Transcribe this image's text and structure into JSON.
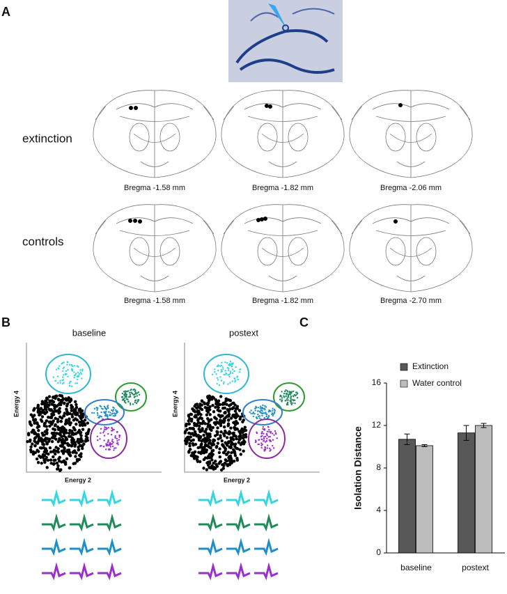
{
  "panels": {
    "a": {
      "label": "A",
      "row_labels": [
        "extinction",
        "controls"
      ],
      "sections": [
        [
          "Bregma -1.58 mm",
          "Bregma -1.82 mm",
          "Bregma -2.06 mm"
        ],
        [
          "Bregma -1.58 mm",
          "Bregma -1.82 mm",
          "Bregma -2.70 mm"
        ]
      ]
    },
    "b": {
      "label": "B",
      "plots": [
        {
          "title": "baseline",
          "x_label": "Energy 2",
          "y_label": "Energy 4"
        },
        {
          "title": "postext",
          "x_label": "Energy 2",
          "y_label": "Energy 4"
        }
      ]
    },
    "c": {
      "label": "C"
    }
  },
  "chart_data": {
    "type": "bar",
    "y_label": "Isolation Distance",
    "categories": [
      "baseline",
      "postext"
    ],
    "series": [
      {
        "name": "Extinction",
        "color": "#585858",
        "values": [
          10.7,
          11.3
        ],
        "errors": [
          0.5,
          0.7
        ]
      },
      {
        "name": "Water control",
        "color": "#bdbdbd",
        "values": [
          10.1,
          12.0
        ],
        "errors": [
          0.1,
          0.2
        ]
      }
    ],
    "ylim": [
      0,
      16
    ],
    "yticks": [
      0,
      4,
      8,
      12,
      16
    ]
  }
}
